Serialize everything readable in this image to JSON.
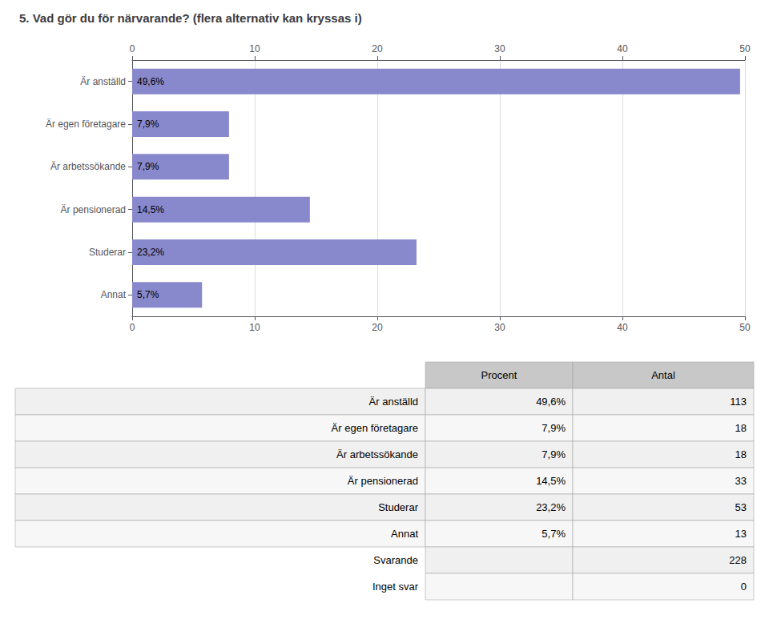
{
  "chart_data": [
    {
      "type": "bar",
      "title": "5. Vad gör du för närvarande? (flera alternativ kan kryssas i)",
      "orientation": "horizontal",
      "categories": [
        "Är anställd",
        "Är egen företagare",
        "Är arbetssökande",
        "Är pensionerad",
        "Studerar",
        "Annat"
      ],
      "values": [
        49.6,
        7.9,
        7.9,
        14.5,
        23.2,
        5.7
      ],
      "value_labels": [
        "49,6%",
        "7,9%",
        "7,9%",
        "14,5%",
        "23,2%",
        "5,7%"
      ],
      "data_labels": true,
      "color": "#8888CC",
      "xlim": [
        0,
        50
      ],
      "xticks": [
        0,
        10,
        20,
        30,
        40,
        50
      ],
      "grid": true
    },
    {
      "type": "table",
      "categories": [
        "Är anställd",
        "Är egen företagare",
        "Är arbetssökande",
        "Är pensionerad",
        "Studerar",
        "Annat",
        "Svarande",
        "Inget svar"
      ],
      "series": [
        {
          "name": "Procent",
          "values": [
            49.6,
            7.9,
            7.9,
            14.5,
            23.2,
            5.7,
            null,
            null
          ],
          "value_labels": [
            "49,6%",
            "7,9%",
            "7,9%",
            "14,5%",
            "23,2%",
            "5,7%",
            null,
            null
          ]
        },
        {
          "name": "Antal",
          "values": [
            113,
            18,
            18,
            33,
            53,
            13,
            228,
            0
          ]
        }
      ]
    }
  ]
}
